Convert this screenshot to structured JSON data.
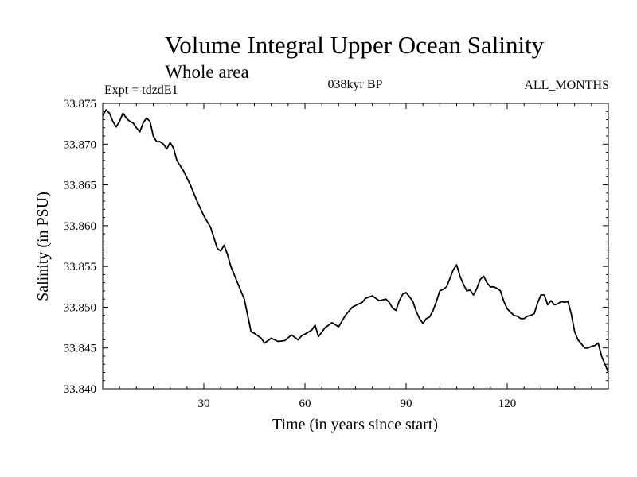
{
  "chart_data": {
    "type": "line",
    "title": "Volume Integral Upper Ocean Salinity",
    "subtitle": "Whole area",
    "expt_label": "Expt = tdzdE1",
    "period_label": "038kyr BP",
    "months_label": "ALL_MONTHS",
    "xlabel": "Time (in years since start)",
    "ylabel": "Salinity (in PSU)",
    "xlim": [
      0,
      150
    ],
    "ylim": [
      33.84,
      33.875
    ],
    "x_ticks": [
      30,
      60,
      90,
      120
    ],
    "x_tick_labels": [
      "30",
      "60",
      "90",
      "120"
    ],
    "y_ticks": [
      33.84,
      33.845,
      33.85,
      33.855,
      33.86,
      33.865,
      33.87,
      33.875
    ],
    "y_tick_labels": [
      "33.840",
      "33.845",
      "33.850",
      "33.855",
      "33.860",
      "33.865",
      "33.870",
      "33.875"
    ],
    "grid": false,
    "series": [
      {
        "name": "Salinity",
        "x": [
          0,
          1,
          2,
          3,
          4,
          5,
          6,
          7,
          8,
          9,
          10,
          11,
          12,
          13,
          14,
          15,
          16,
          17,
          18,
          19,
          20,
          21,
          22,
          24,
          26,
          28,
          30,
          32,
          34,
          35,
          36,
          37,
          38,
          40,
          42,
          44,
          45,
          47,
          48,
          50,
          52,
          54,
          56,
          58,
          59,
          60,
          62,
          63,
          64,
          66,
          68,
          70,
          72,
          74,
          76,
          77,
          78,
          80,
          82,
          84,
          85,
          86,
          87,
          88,
          89,
          90,
          91,
          92,
          93,
          94,
          95,
          96,
          97,
          98,
          99,
          100,
          101,
          102,
          103,
          104,
          105,
          106,
          107,
          108,
          109,
          110,
          111,
          112,
          113,
          114,
          115,
          116,
          117,
          118,
          119,
          120,
          121,
          122,
          123,
          124,
          125,
          126,
          127,
          128,
          129,
          130,
          131,
          132,
          133,
          134,
          135,
          136,
          137,
          138,
          139,
          140,
          141,
          142,
          143,
          144,
          145,
          146,
          147,
          148,
          149,
          150
        ],
        "values": [
          33.8735,
          33.8742,
          33.8738,
          33.8728,
          33.8721,
          33.8728,
          33.8738,
          33.8732,
          33.8728,
          33.8726,
          33.872,
          33.8715,
          33.8726,
          33.8732,
          33.8728,
          33.871,
          33.8703,
          33.8703,
          33.87,
          33.8694,
          33.8702,
          33.8695,
          33.868,
          33.8667,
          33.865,
          33.863,
          33.8612,
          33.8598,
          33.8572,
          33.8569,
          33.8576,
          33.8565,
          33.855,
          33.853,
          33.851,
          33.847,
          33.8468,
          33.8462,
          33.8456,
          33.8462,
          33.8458,
          33.8459,
          33.8466,
          33.846,
          33.8465,
          33.8467,
          33.8472,
          33.8478,
          33.8464,
          33.8475,
          33.8481,
          33.8476,
          33.849,
          33.85,
          33.8504,
          33.8506,
          33.8511,
          33.8514,
          33.8508,
          33.851,
          33.8506,
          33.8499,
          33.8496,
          33.8508,
          33.8516,
          33.8518,
          33.8513,
          33.8507,
          33.8495,
          33.8486,
          33.848,
          33.8486,
          33.8488,
          33.8496,
          33.8507,
          33.852,
          33.8522,
          33.8525,
          33.8535,
          33.8546,
          33.8552,
          33.8538,
          33.8528,
          33.852,
          33.8521,
          33.8515,
          33.8523,
          33.8534,
          33.8538,
          33.853,
          33.8525,
          33.8525,
          33.8523,
          33.852,
          33.8507,
          33.8498,
          33.8494,
          33.849,
          33.8489,
          33.8486,
          33.8486,
          33.8489,
          33.849,
          33.8492,
          33.8505,
          33.8515,
          33.8515,
          33.8503,
          33.8508,
          33.8503,
          33.8504,
          33.8507,
          33.8506,
          33.8507,
          33.8492,
          33.847,
          33.846,
          33.8455,
          33.845,
          33.845,
          33.8452,
          33.8453,
          33.8456,
          33.844,
          33.843,
          33.842
        ]
      }
    ]
  }
}
